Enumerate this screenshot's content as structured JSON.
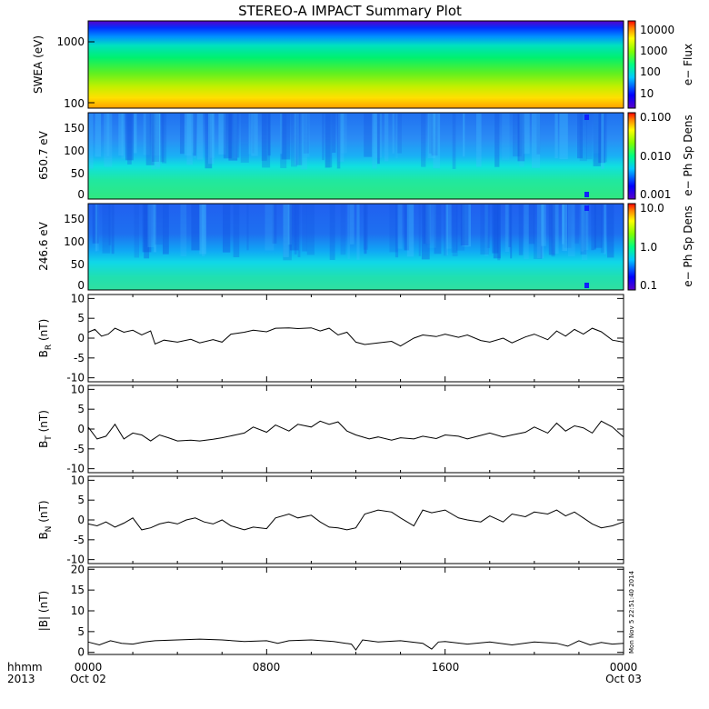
{
  "title": "STEREO-A IMPACT Summary Plot",
  "footer": {
    "row_label_1": "hhmm",
    "row_label_2": "2013",
    "ticks": [
      {
        "time": "0000",
        "date": "Oct 02"
      },
      {
        "time": "0800",
        "date": ""
      },
      {
        "time": "1600",
        "date": ""
      },
      {
        "time": "0000",
        "date": "Oct 03"
      }
    ]
  },
  "timestamp": "Mon Nov  5 22:51:40 2014",
  "colors": {
    "trace": "#000000",
    "frame": "#000000"
  },
  "chart_data": [
    {
      "type": "heatmap",
      "ylabel": "SWEA (eV)",
      "yscale": "log",
      "ylim": [
        90,
        2000
      ],
      "ytick_labels": [
        "1000",
        "100"
      ],
      "colorbar": {
        "label": "e− Flux",
        "scale": "log",
        "range": [
          3,
          20000
        ],
        "tick_labels": [
          "10000",
          "1000",
          "100",
          "10"
        ]
      }
    },
    {
      "type": "heatmap",
      "ylabel": "650.7 eV",
      "ylim": [
        0,
        180
      ],
      "ytick_labels": [
        "150",
        "100",
        "50",
        "0"
      ],
      "colorbar": {
        "label": "e− Ph Sp Dens",
        "scale": "log",
        "range": [
          0.001,
          0.1
        ],
        "tick_labels": [
          "0.100",
          "0.010",
          "0.001"
        ]
      }
    },
    {
      "type": "heatmap",
      "ylabel": "246.6 eV",
      "ylim": [
        0,
        180
      ],
      "ytick_labels": [
        "150",
        "100",
        "50",
        "0"
      ],
      "colorbar": {
        "label": "e− Ph Sp Dens",
        "scale": "log",
        "range": [
          0.1,
          10
        ],
        "tick_labels": [
          "10.0",
          "1.0",
          "0.1"
        ]
      }
    },
    {
      "type": "line",
      "ylabel": "B_R (nT)",
      "ylim": [
        -11,
        11
      ],
      "ytick_labels": [
        "10",
        "5",
        "0",
        "-5",
        "-10"
      ],
      "x_hours": [
        0,
        0.3,
        0.6,
        0.9,
        1.2,
        1.6,
        2.0,
        2.4,
        2.8,
        3.0,
        3.4,
        4.0,
        4.6,
        5.0,
        5.6,
        6.0,
        6.4,
        7.0,
        7.4,
        8.0,
        8.4,
        9.0,
        9.4,
        10.0,
        10.4,
        10.8,
        11.2,
        11.6,
        12.0,
        12.4,
        13.0,
        13.6,
        14.0,
        14.6,
        15.0,
        15.6,
        16.0,
        16.6,
        17.0,
        17.6,
        18.0,
        18.6,
        19.0,
        19.6,
        20.0,
        20.6,
        21.0,
        21.4,
        21.8,
        22.2,
        22.6,
        23.0,
        23.5,
        24.0
      ],
      "values": [
        1.5,
        2.2,
        0.5,
        1.0,
        2.5,
        1.5,
        2.0,
        0.8,
        1.8,
        -1.5,
        -0.5,
        -1.0,
        -0.3,
        -1.2,
        -0.4,
        -1.0,
        1.0,
        1.5,
        2.0,
        1.6,
        2.5,
        2.6,
        2.4,
        2.6,
        1.8,
        2.5,
        0.8,
        1.5,
        -1.0,
        -1.6,
        -1.2,
        -0.8,
        -2.0,
        0.0,
        0.8,
        0.4,
        1.0,
        0.2,
        0.8,
        -0.6,
        -1.0,
        0.0,
        -1.2,
        0.3,
        1.0,
        -0.4,
        1.8,
        0.5,
        2.2,
        1.0,
        2.5,
        1.6,
        -0.5,
        -1.0
      ]
    },
    {
      "type": "line",
      "ylabel": "B_T (nT)",
      "ylim": [
        -11,
        11
      ],
      "ytick_labels": [
        "10",
        "5",
        "0",
        "-5",
        "-10"
      ],
      "x_hours": [
        0,
        0.4,
        0.8,
        1.2,
        1.6,
        2.0,
        2.4,
        2.8,
        3.2,
        3.6,
        4.0,
        4.6,
        5.0,
        5.6,
        6.0,
        6.6,
        7.0,
        7.4,
        8.0,
        8.4,
        9.0,
        9.4,
        10.0,
        10.4,
        10.8,
        11.2,
        11.6,
        12.0,
        12.6,
        13.0,
        13.6,
        14.0,
        14.6,
        15.0,
        15.6,
        16.0,
        16.6,
        17.0,
        17.6,
        18.0,
        18.6,
        19.0,
        19.6,
        20.0,
        20.6,
        21.0,
        21.4,
        21.8,
        22.2,
        22.6,
        23.0,
        23.5,
        24.0
      ],
      "values": [
        0.5,
        -2.5,
        -1.8,
        1.2,
        -2.5,
        -1.0,
        -1.5,
        -3.0,
        -1.5,
        -2.2,
        -3.0,
        -2.8,
        -3.0,
        -2.6,
        -2.2,
        -1.5,
        -1.0,
        0.5,
        -0.8,
        1.0,
        -0.5,
        1.2,
        0.5,
        2.0,
        1.2,
        1.8,
        -0.5,
        -1.5,
        -2.5,
        -2.0,
        -2.8,
        -2.2,
        -2.5,
        -1.8,
        -2.4,
        -1.5,
        -1.8,
        -2.5,
        -1.6,
        -1.0,
        -2.0,
        -1.5,
        -0.8,
        0.5,
        -1.0,
        1.5,
        -0.5,
        0.8,
        0.3,
        -1.0,
        2.0,
        0.5,
        -2.0
      ]
    },
    {
      "type": "line",
      "ylabel": "B_N (nT)",
      "ylim": [
        -11,
        11
      ],
      "ytick_labels": [
        "10",
        "5",
        "0",
        "-5",
        "-10"
      ],
      "x_hours": [
        0,
        0.4,
        0.8,
        1.2,
        1.6,
        2.0,
        2.4,
        2.8,
        3.2,
        3.6,
        4.0,
        4.4,
        4.8,
        5.2,
        5.6,
        6.0,
        6.4,
        7.0,
        7.4,
        8.0,
        8.4,
        9.0,
        9.4,
        10.0,
        10.4,
        10.8,
        11.2,
        11.6,
        12.0,
        12.4,
        13.0,
        13.6,
        14.0,
        14.6,
        15.0,
        15.4,
        16.0,
        16.6,
        17.0,
        17.6,
        18.0,
        18.6,
        19.0,
        19.6,
        20.0,
        20.6,
        21.0,
        21.4,
        21.8,
        22.2,
        22.6,
        23.0,
        23.5,
        24.0
      ],
      "values": [
        -1.0,
        -1.5,
        -0.5,
        -1.8,
        -0.8,
        0.5,
        -2.5,
        -2.0,
        -1.0,
        -0.5,
        -1.0,
        0.0,
        0.5,
        -0.5,
        -1.0,
        0.0,
        -1.5,
        -2.5,
        -1.8,
        -2.2,
        0.5,
        1.5,
        0.5,
        1.2,
        -0.5,
        -1.8,
        -2.0,
        -2.5,
        -2.0,
        1.5,
        2.5,
        2.0,
        0.5,
        -1.5,
        2.5,
        1.8,
        2.5,
        0.5,
        0.0,
        -0.5,
        1.0,
        -0.5,
        1.5,
        0.8,
        2.0,
        1.5,
        2.5,
        1.0,
        2.0,
        0.5,
        -1.0,
        -2.0,
        -1.5,
        -0.5
      ]
    },
    {
      "type": "line",
      "ylabel": "|B| (nT)",
      "ylim": [
        -0.5,
        20.5
      ],
      "ytick_labels": [
        "20",
        "15",
        "10",
        "5",
        "0"
      ],
      "x_hours": [
        0,
        0.5,
        1.0,
        1.5,
        2.0,
        2.5,
        3.0,
        4.0,
        5.0,
        6.0,
        7.0,
        8.0,
        8.5,
        9.0,
        10.0,
        11.0,
        11.8,
        12.0,
        12.3,
        13.0,
        14.0,
        15.0,
        15.4,
        15.7,
        16.0,
        17.0,
        18.0,
        19.0,
        20.0,
        21.0,
        21.5,
        22.0,
        22.5,
        23.0,
        23.5,
        24.0
      ],
      "values": [
        2.5,
        1.8,
        2.8,
        2.2,
        2.0,
        2.5,
        2.8,
        3.0,
        3.2,
        3.0,
        2.6,
        2.8,
        2.2,
        2.8,
        3.0,
        2.6,
        2.0,
        0.6,
        3.0,
        2.5,
        2.8,
        2.2,
        0.8,
        2.5,
        2.6,
        2.0,
        2.5,
        1.8,
        2.5,
        2.2,
        1.5,
        2.8,
        1.8,
        2.4,
        2.0,
        2.2
      ]
    }
  ]
}
